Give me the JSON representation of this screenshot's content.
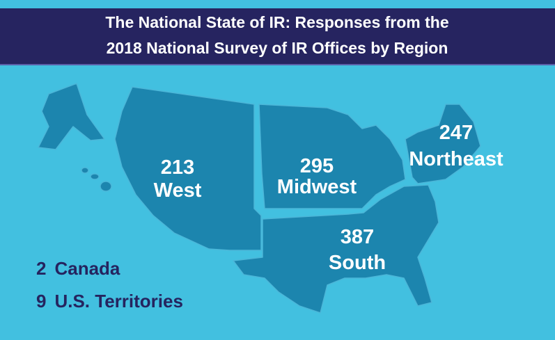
{
  "title_lines": [
    "The National State of IR: Responses from the",
    "2018 National Survey of IR Offices by Region"
  ],
  "regions": [
    {
      "count": 213,
      "name": "West"
    },
    {
      "count": 295,
      "name": "Midwest"
    },
    {
      "count": 247,
      "name": "Northeast"
    },
    {
      "count": 387,
      "name": "South"
    }
  ],
  "others": [
    {
      "count": 2,
      "name": "Canada"
    },
    {
      "count": 9,
      "name": "U.S. Territories"
    }
  ]
}
